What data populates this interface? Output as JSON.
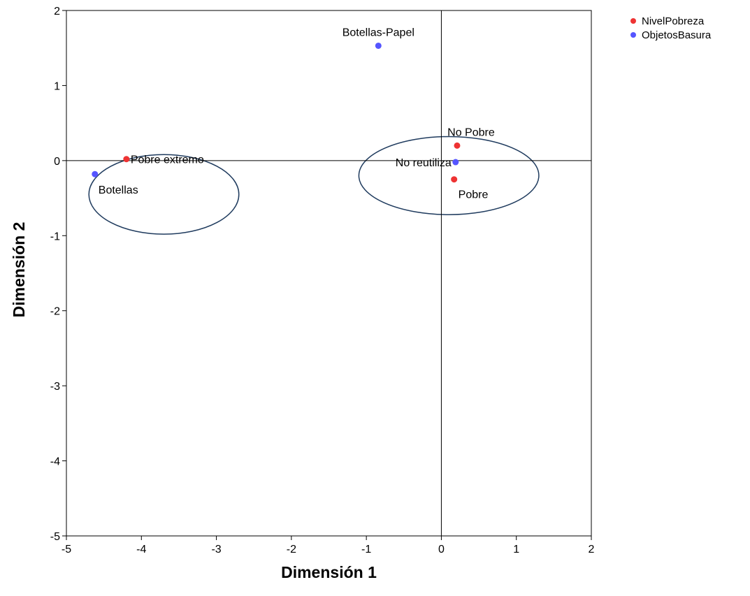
{
  "chart_data": {
    "type": "scatter",
    "xlabel": "Dimensión 1",
    "ylabel": "Dimensión 2",
    "xlim": [
      -5,
      2
    ],
    "ylim": [
      -5,
      2
    ],
    "xticks": [
      -5,
      -4,
      -3,
      -2,
      -1,
      0,
      1,
      2
    ],
    "yticks": [
      -5,
      -4,
      -3,
      -2,
      -1,
      0,
      1,
      2
    ],
    "reference_lines": {
      "x": 0,
      "y": 0
    },
    "grid": false,
    "legend_position": "top-right outside",
    "series": [
      {
        "name": "NivelPobreza",
        "color": "#ee3333",
        "points": [
          {
            "label": "Pobre extremo",
            "x": -4.2,
            "y": 0.02
          },
          {
            "label": "No Pobre",
            "x": 0.21,
            "y": 0.2
          },
          {
            "label": "Pobre",
            "x": 0.17,
            "y": -0.25
          }
        ]
      },
      {
        "name": "ObjetosBasura",
        "color": "#5555ff",
        "points": [
          {
            "label": "Botellas-Papel",
            "x": -0.84,
            "y": 1.53
          },
          {
            "label": "Botellas",
            "x": -4.62,
            "y": -0.18
          },
          {
            "label": "No reutiliza",
            "x": 0.19,
            "y": -0.02
          }
        ]
      }
    ],
    "annotations": [
      {
        "shape": "ellipse",
        "cx": -3.7,
        "cy": -0.45,
        "rx": 1.0,
        "ry": 0.53,
        "stroke": "#1f3b5e"
      },
      {
        "shape": "ellipse",
        "cx": 0.1,
        "cy": -0.2,
        "rx": 1.2,
        "ry": 0.52,
        "stroke": "#1f3b5e"
      }
    ]
  }
}
